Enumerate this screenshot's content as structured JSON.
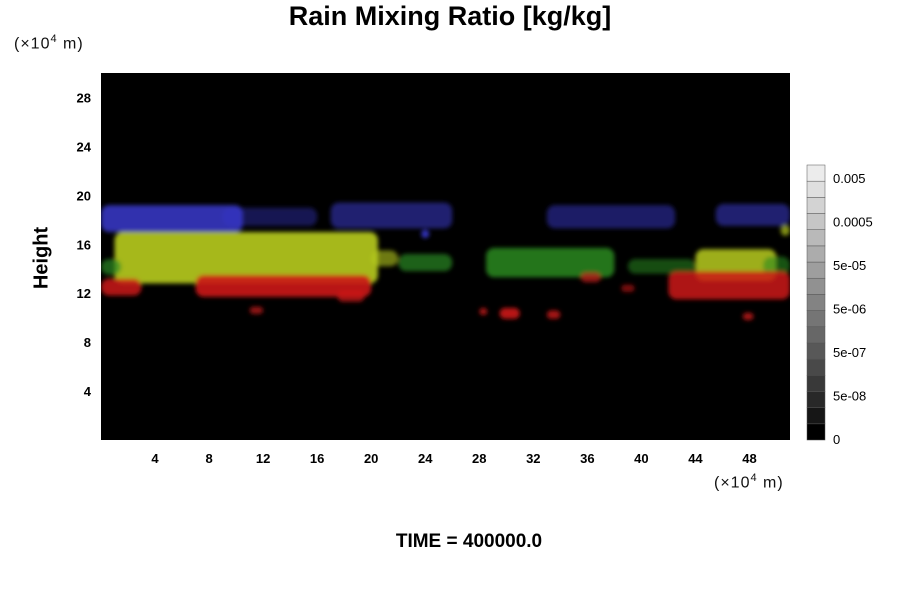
{
  "title": "Rain Mixing Ratio [kg/kg]",
  "time_label": "TIME = 400000.0",
  "unit_label": "(×10",
  "unit_exponent": "4",
  "unit_suffix": " m)",
  "chart_data": {
    "type": "heatmap",
    "title": "Rain Mixing Ratio [kg/kg]",
    "ylabel": "Height",
    "xlabel": "",
    "x_ticks": [
      4,
      8,
      12,
      16,
      20,
      24,
      28,
      32,
      36,
      40,
      44,
      48
    ],
    "y_ticks": [
      4,
      8,
      12,
      16,
      20,
      24,
      28
    ],
    "xlim": [
      0,
      51
    ],
    "ylim": [
      0,
      30
    ],
    "background_color": "#000000",
    "colorbar": {
      "labels": [
        "0.005",
        "0.0005",
        "5e-05",
        "5e-06",
        "5e-07",
        "5e-08",
        "0"
      ],
      "levels": 17,
      "color_low": "#000000",
      "color_high": "#ececec"
    },
    "layers": [
      {
        "color": "#3838cc",
        "blobs": [
          {
            "x": [
              0,
              10.5
            ],
            "y": [
              17,
              19.2
            ],
            "intensity": 0.85
          },
          {
            "x": [
              9,
              16
            ],
            "y": [
              17.5,
              19
            ],
            "intensity": 0.4
          },
          {
            "x": [
              17,
              26
            ],
            "y": [
              17.3,
              19.4
            ],
            "intensity": 0.55
          },
          {
            "x": [
              23.7,
              24.3
            ],
            "y": [
              16.5,
              17.2
            ],
            "intensity": 0.9
          },
          {
            "x": [
              33,
              42.5
            ],
            "y": [
              17.3,
              19.2
            ],
            "intensity": 0.5
          },
          {
            "x": [
              45.5,
              51
            ],
            "y": [
              17.5,
              19.3
            ],
            "intensity": 0.55
          }
        ]
      },
      {
        "color": "#b8cc1e",
        "blobs": [
          {
            "x": [
              1,
              20.5
            ],
            "y": [
              12.8,
              17
            ],
            "intensity": 0.9
          },
          {
            "x": [
              20,
              22
            ],
            "y": [
              14.2,
              15.5
            ],
            "intensity": 0.6
          },
          {
            "x": [
              44,
              50
            ],
            "y": [
              13,
              15.6
            ],
            "intensity": 0.85
          },
          {
            "x": [
              50.3,
              51
            ],
            "y": [
              16.7,
              17.6
            ],
            "intensity": 0.7
          }
        ]
      },
      {
        "color": "#2a8a22",
        "blobs": [
          {
            "x": [
              0,
              1.5
            ],
            "y": [
              13.5,
              14.8
            ],
            "intensity": 0.7
          },
          {
            "x": [
              22,
              26
            ],
            "y": [
              13.8,
              15.2
            ],
            "intensity": 0.7
          },
          {
            "x": [
              28.5,
              38
            ],
            "y": [
              13.3,
              15.7
            ],
            "intensity": 0.85
          },
          {
            "x": [
              39,
              44
            ],
            "y": [
              13.6,
              14.8
            ],
            "intensity": 0.55
          },
          {
            "x": [
              49,
              51
            ],
            "y": [
              13.5,
              15
            ],
            "intensity": 0.6
          }
        ]
      },
      {
        "color": "#cc1818",
        "blobs": [
          {
            "x": [
              0,
              3
            ],
            "y": [
              11.8,
              13.2
            ],
            "intensity": 0.85
          },
          {
            "x": [
              7,
              20
            ],
            "y": [
              11.7,
              13.5
            ],
            "intensity": 0.9
          },
          {
            "x": [
              17.5,
              19.5
            ],
            "y": [
              11.3,
              12.2
            ],
            "intensity": 0.75
          },
          {
            "x": [
              11,
              12
            ],
            "y": [
              10.3,
              10.9
            ],
            "intensity": 0.7
          },
          {
            "x": [
              28,
              28.6
            ],
            "y": [
              10.2,
              10.8
            ],
            "intensity": 0.8
          },
          {
            "x": [
              29.5,
              31
            ],
            "y": [
              9.9,
              10.8
            ],
            "intensity": 0.9
          },
          {
            "x": [
              33,
              34
            ],
            "y": [
              9.9,
              10.6
            ],
            "intensity": 0.8
          },
          {
            "x": [
              35.5,
              37
            ],
            "y": [
              12.9,
              13.7
            ],
            "intensity": 0.7
          },
          {
            "x": [
              38.5,
              39.5
            ],
            "y": [
              12.1,
              12.7
            ],
            "intensity": 0.6
          },
          {
            "x": [
              42,
              51
            ],
            "y": [
              11.5,
              13.8
            ],
            "intensity": 0.85
          },
          {
            "x": [
              47.5,
              48.3
            ],
            "y": [
              9.8,
              10.4
            ],
            "intensity": 0.8
          }
        ]
      }
    ]
  }
}
